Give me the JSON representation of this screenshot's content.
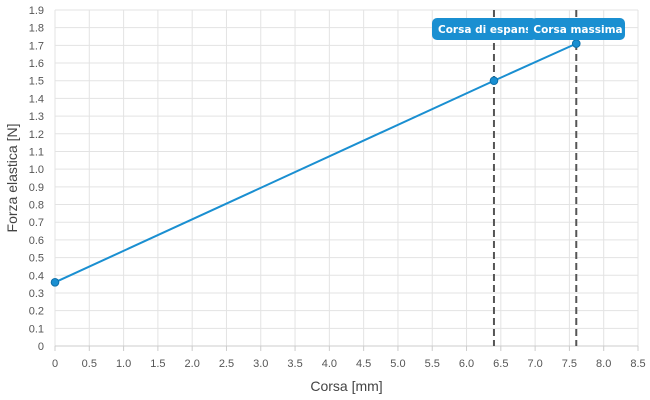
{
  "chart_data": {
    "type": "line",
    "xlabel": "Corsa [mm]",
    "ylabel": "Forza elastica [N]",
    "xlim": [
      0,
      8.5
    ],
    "ylim": [
      0,
      1.9
    ],
    "x_ticks": [
      0,
      0.5,
      1.0,
      1.5,
      2.0,
      2.5,
      3.0,
      3.5,
      4.0,
      4.5,
      5.0,
      5.5,
      6.0,
      6.5,
      7.0,
      7.5,
      8.0,
      8.5
    ],
    "x_tick_labels": [
      "0",
      "0.5",
      "1.0",
      "1.5",
      "2.0",
      "2.5",
      "3.0",
      "3.5",
      "4.0",
      "4.5",
      "5.0",
      "5.5",
      "6.0",
      "6.5",
      "7.0",
      "7.5",
      "8.0",
      "8.5"
    ],
    "y_ticks": [
      0,
      0.1,
      0.2,
      0.3,
      0.4,
      0.5,
      0.6,
      0.7,
      0.8,
      0.9,
      1.0,
      1.1,
      1.2,
      1.3,
      1.4,
      1.5,
      1.6,
      1.7,
      1.8,
      1.9
    ],
    "y_tick_labels": [
      "0",
      "0.1",
      "0.2",
      "0.3",
      "0.4",
      "0.5",
      "0.6",
      "0.7",
      "0.8",
      "0.9",
      "1.0",
      "1.1",
      "1.2",
      "1.3",
      "1.4",
      "1.5",
      "1.6",
      "1.7",
      "1.8",
      "1.9"
    ],
    "grid": true,
    "series": [
      {
        "color": "#1a8fd1",
        "points": [
          {
            "x": 0,
            "y": 0.36
          },
          {
            "x": 6.4,
            "y": 1.5
          },
          {
            "x": 7.6,
            "y": 1.71
          }
        ]
      }
    ],
    "annotations": [
      {
        "x": 6.4,
        "label": "Corsa di espansi",
        "line_color": "#555555",
        "badge_color": "#1a8fd1"
      },
      {
        "x": 7.6,
        "label": "Corsa massima",
        "line_color": "#555555",
        "badge_color": "#1a8fd1"
      }
    ]
  }
}
